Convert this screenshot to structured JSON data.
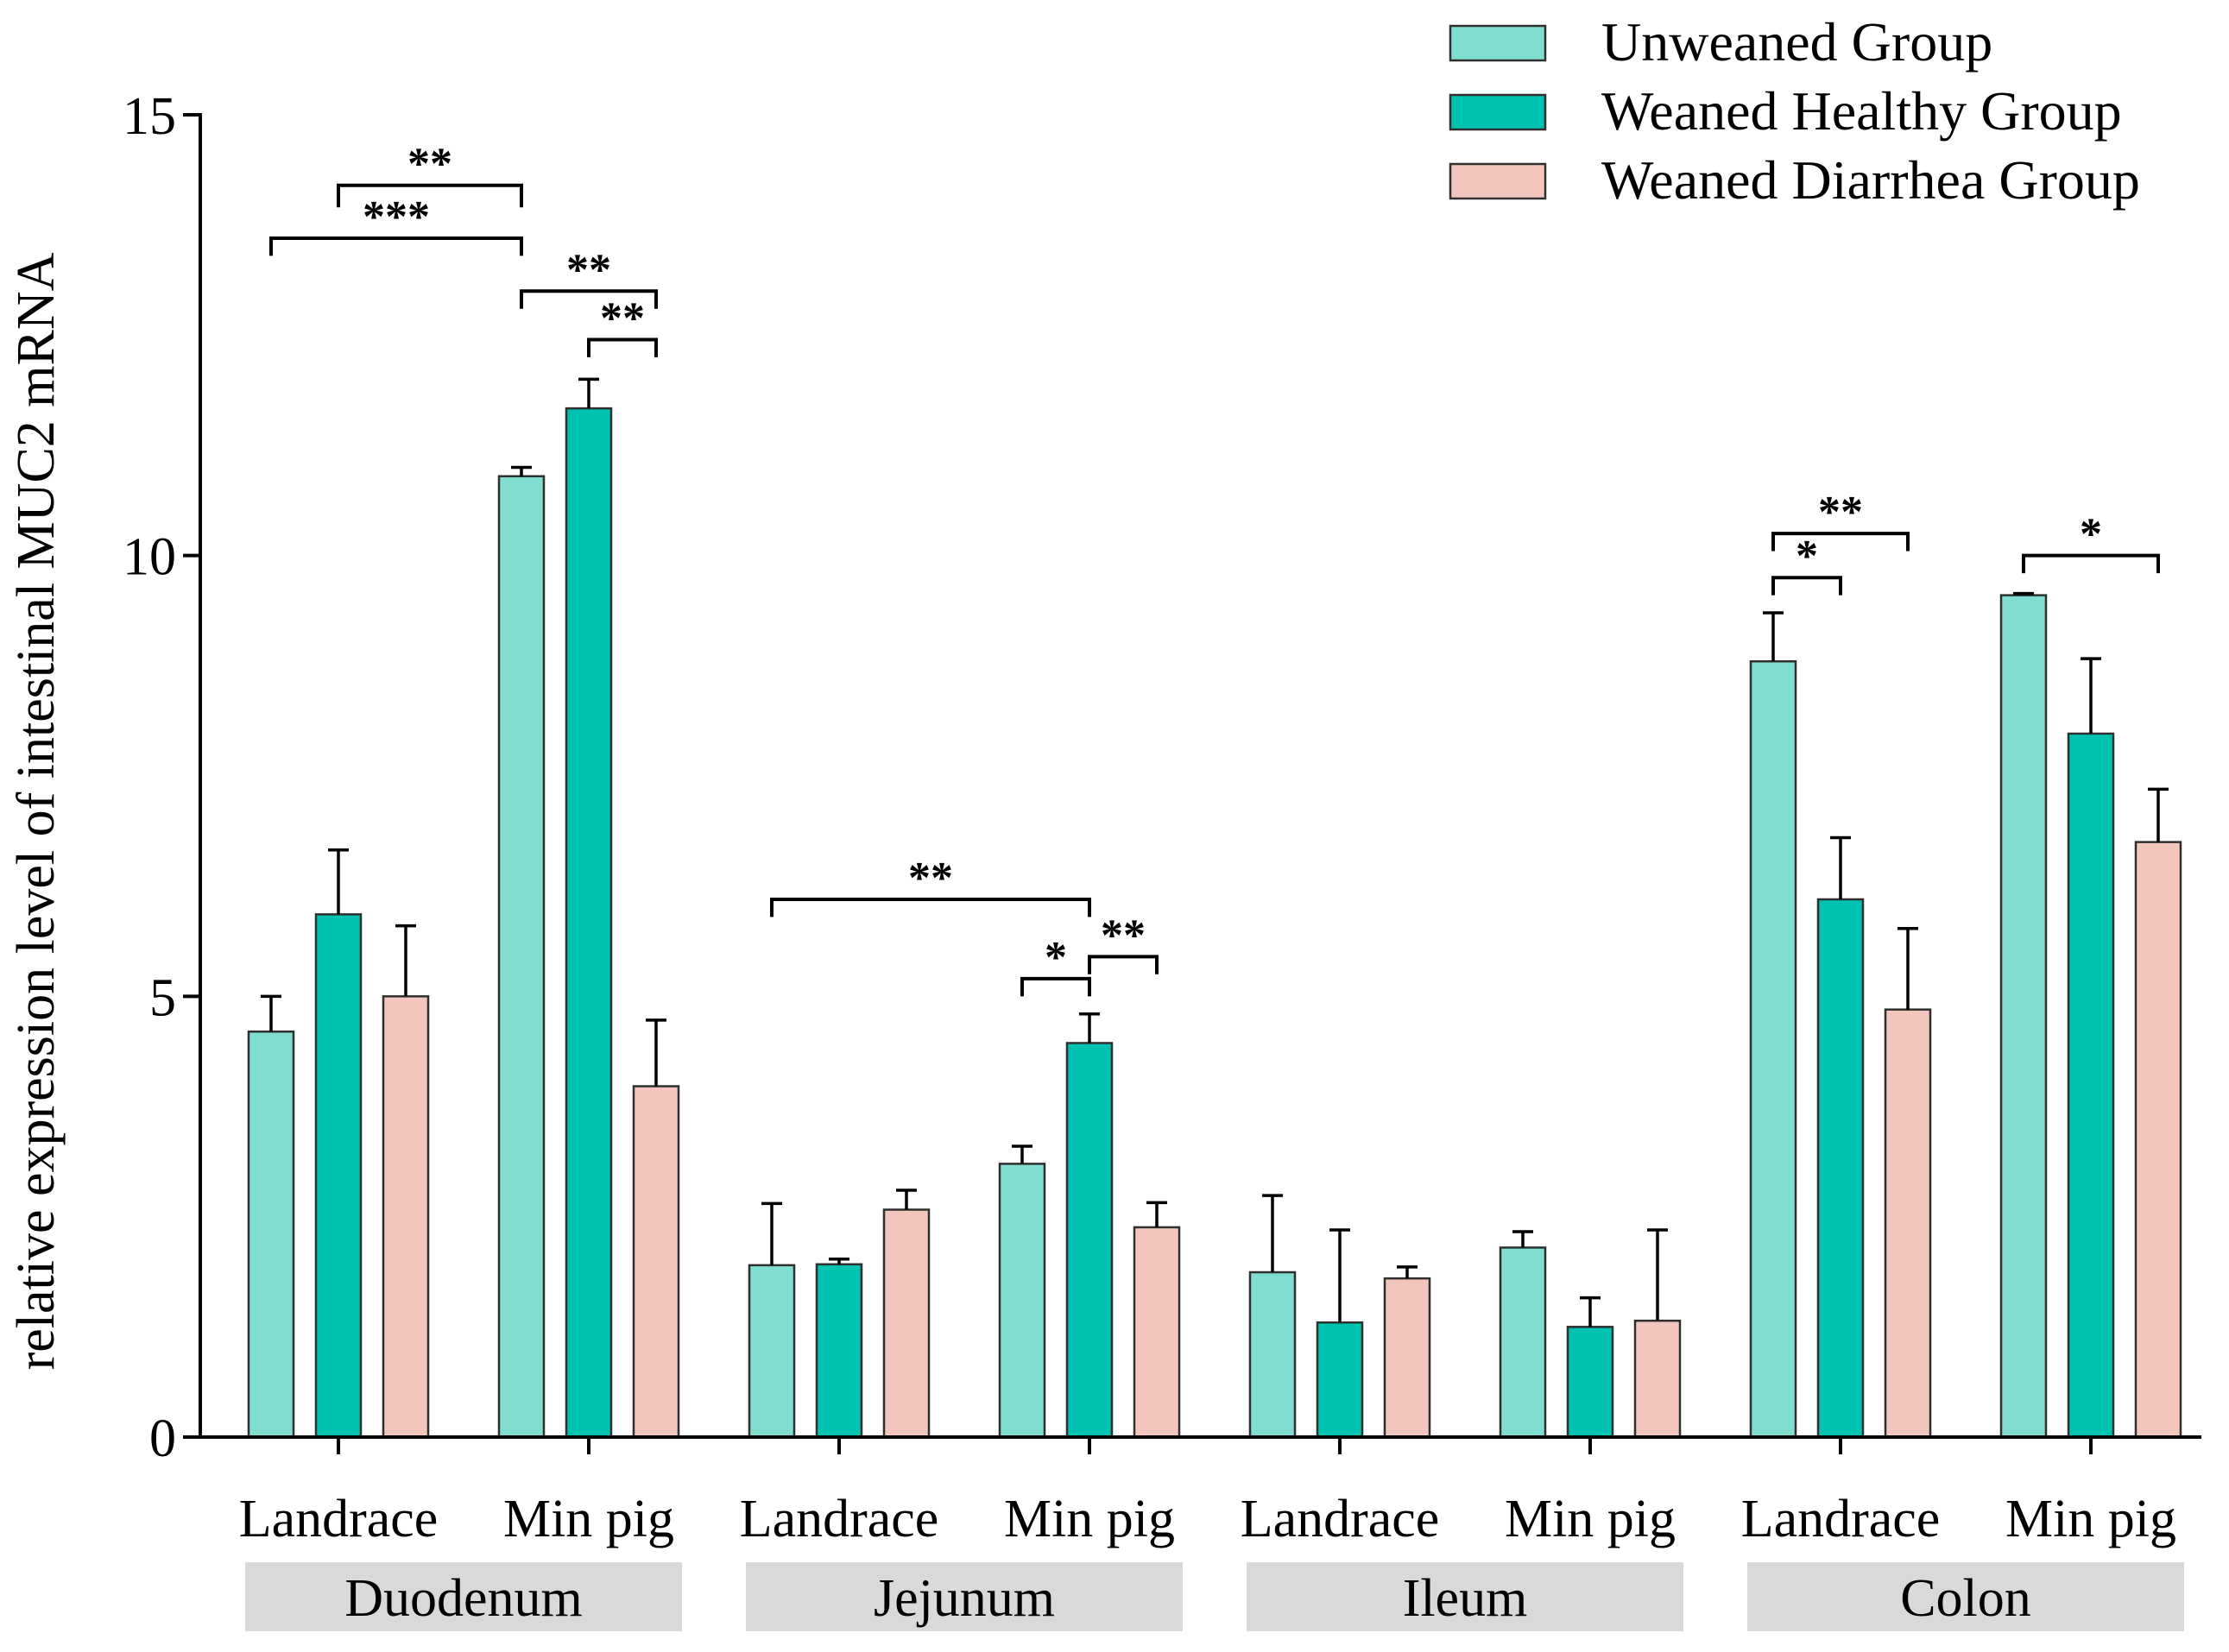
{
  "chart_data": {
    "type": "bar",
    "ylabel": "relative expression level of intestinal MUC2 mRNA",
    "ylim": [
      0,
      15
    ],
    "yticks": [
      0,
      5,
      10,
      15
    ],
    "groups": [
      {
        "name": "Duodenum",
        "categories": [
          "Landrace",
          "Min pig"
        ]
      },
      {
        "name": "Jejunum",
        "categories": [
          "Landrace",
          "Min pig"
        ]
      },
      {
        "name": "Ileum",
        "categories": [
          "Landrace",
          "Min pig"
        ]
      },
      {
        "name": "Colon",
        "categories": [
          "Landrace",
          "Min pig"
        ]
      }
    ],
    "categories": [
      "Landrace",
      "Min pig",
      "Landrace",
      "Min pig",
      "Landrace",
      "Min pig",
      "Landrace",
      "Min pig"
    ],
    "series": [
      {
        "name": "Unweaned Group",
        "color": "#80ddd0",
        "values": [
          4.6,
          10.9,
          1.95,
          3.1,
          1.87,
          2.15,
          8.8,
          9.55
        ],
        "errors": [
          0.4,
          0.1,
          0.7,
          0.2,
          0.87,
          0.18,
          0.55,
          0.02
        ]
      },
      {
        "name": "Weaned Healthy Group",
        "color": "#00c2b1",
        "values": [
          5.93,
          11.67,
          1.96,
          4.47,
          1.3,
          1.25,
          6.1,
          7.98
        ],
        "errors": [
          0.73,
          0.33,
          0.06,
          0.33,
          1.05,
          0.33,
          0.7,
          0.85
        ]
      },
      {
        "name": "Weaned Diarrhea Group",
        "color": "#f2c6bc",
        "values": [
          5.0,
          3.98,
          2.58,
          2.38,
          1.8,
          1.32,
          4.85,
          6.75
        ],
        "errors": [
          0.8,
          0.75,
          0.22,
          0.28,
          0.13,
          1.03,
          0.92,
          0.6
        ]
      }
    ],
    "significance": [
      {
        "label": "**",
        "from": [
          0,
          1
        ],
        "to": [
          1,
          0
        ],
        "y": 14.2,
        "drop": 0.25
      },
      {
        "label": "***",
        "from": [
          0,
          0
        ],
        "to": [
          1,
          0
        ],
        "y": 13.6,
        "drop": 0.2
      },
      {
        "label": "**",
        "from": [
          1,
          0
        ],
        "to": [
          1,
          2
        ],
        "y": 13.0,
        "drop": 0.2
      },
      {
        "label": "**",
        "from": [
          1,
          1
        ],
        "to": [
          1,
          2
        ],
        "y": 12.45,
        "drop": 0.2
      },
      {
        "label": "**",
        "from": [
          2,
          0
        ],
        "to": [
          3,
          1
        ],
        "y": 6.1,
        "drop": 0.2
      },
      {
        "label": "*",
        "from": [
          3,
          0
        ],
        "to": [
          3,
          1
        ],
        "y": 5.2,
        "drop": 0.2
      },
      {
        "label": "**",
        "from": [
          3,
          1
        ],
        "to": [
          3,
          2
        ],
        "y": 5.45,
        "drop": 0.2
      },
      {
        "label": "**",
        "from": [
          6,
          0
        ],
        "to": [
          6,
          2
        ],
        "y": 10.25,
        "drop": 0.2
      },
      {
        "label": "*",
        "from": [
          6,
          0
        ],
        "to": [
          6,
          1
        ],
        "y": 9.75,
        "drop": 0.2
      },
      {
        "label": "*",
        "from": [
          7,
          0
        ],
        "to": [
          7,
          2
        ],
        "y": 10.0,
        "drop": 0.2
      }
    ],
    "legend_position": "top-right"
  }
}
